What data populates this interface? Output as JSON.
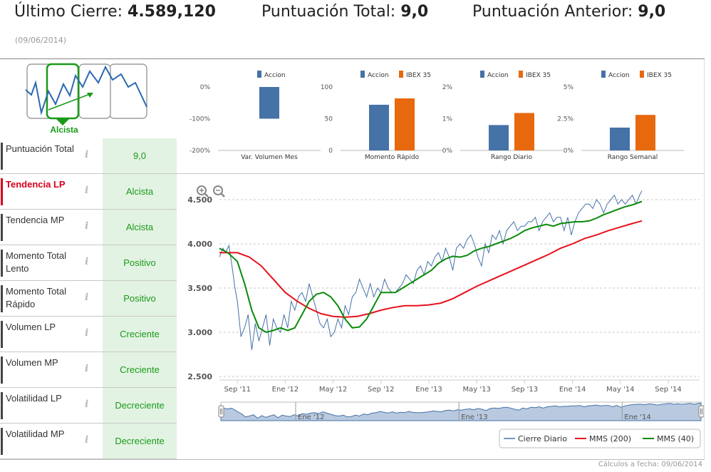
{
  "header": {
    "ultimo_cierre_label": "Último Cierre:",
    "ultimo_cierre_value": "4.589,120",
    "puntuacion_total_label": "Puntuación Total:",
    "puntuacion_total_value": "9,0",
    "puntuacion_anterior_label": "Puntuación Anterior:",
    "puntuacion_anterior_value": "9,0",
    "date": "(09/06/2014)"
  },
  "signal": {
    "label": "Alcista"
  },
  "rows": [
    {
      "label": "Puntuación Total",
      "value": "9,0",
      "active": false
    },
    {
      "label": "Tendencia LP",
      "value": "Alcista",
      "active": true
    },
    {
      "label": "Tendencia MP",
      "value": "Alcista",
      "active": false
    },
    {
      "label": "Momento Total Lento",
      "value": "Positivo",
      "active": false
    },
    {
      "label": "Momento Total Rápido",
      "value": "Positivo",
      "active": false
    },
    {
      "label": "Volumen LP",
      "value": "Creciente",
      "active": false
    },
    {
      "label": "Volumen MP",
      "value": "Creciente",
      "active": false
    },
    {
      "label": "Volatilidad LP",
      "value": "Decreciente",
      "active": false
    },
    {
      "label": "Volatilidad MP",
      "value": "Decreciente",
      "active": false
    }
  ],
  "info_glyph": "i",
  "colors": {
    "accion": "#4572a7",
    "ibex": "#e8680e",
    "price": "#4572a7",
    "mms200": "#e8111c",
    "mms40": "#0a8a0a",
    "good_bg": "#e3f3e3",
    "good_text": "#1a9a1a",
    "active_text": "#d6001c"
  },
  "chart_data": [
    {
      "type": "bar",
      "title": "Var. Volumen Mes",
      "series": [
        {
          "name": "Accion",
          "values": [
            -100
          ]
        }
      ],
      "yticks": [
        "0%",
        "-100%",
        "-200%"
      ],
      "ylim": [
        -200,
        0
      ]
    },
    {
      "type": "bar",
      "title": "Momento Rápido",
      "series": [
        {
          "name": "Accion",
          "values": [
            72
          ]
        },
        {
          "name": "IBEX 35",
          "values": [
            82
          ]
        }
      ],
      "yticks": [
        "100",
        "50",
        "0"
      ],
      "ylim": [
        0,
        100
      ]
    },
    {
      "type": "bar",
      "title": "Rango Diario",
      "series": [
        {
          "name": "Accion",
          "values": [
            0.8
          ]
        },
        {
          "name": "IBEX 35",
          "values": [
            1.18
          ]
        }
      ],
      "yticks": [
        "2%",
        "1%",
        "0%"
      ],
      "ylim": [
        0,
        2
      ]
    },
    {
      "type": "bar",
      "title": "Rango Semanal",
      "series": [
        {
          "name": "Accion",
          "values": [
            1.8
          ]
        },
        {
          "name": "IBEX 35",
          "values": [
            2.8
          ]
        }
      ],
      "yticks": [
        "5%",
        "2.5%",
        "0%"
      ],
      "ylim": [
        0,
        5
      ]
    },
    {
      "type": "line",
      "ylim": [
        2500,
        4600
      ],
      "yticks": [
        "4.500",
        "4.000",
        "3.500",
        "3.000",
        "2.500"
      ],
      "ytick_values": [
        4500,
        4000,
        3500,
        3000,
        2500
      ],
      "xticks": [
        "Sep '11",
        "Ene '12",
        "May '12",
        "Sep '12",
        "Ene '13",
        "May '13",
        "Sep '13",
        "Ene '14",
        "May '14",
        "Sep '14"
      ],
      "xtick_months": [
        0,
        4,
        8,
        12,
        16,
        20,
        24,
        28,
        32,
        36
      ],
      "x_unit": "months from Sep '11",
      "grid": "horizontal dashed",
      "legend_position": "bottom-right",
      "navigator_labels": [
        "Ene '12",
        "Ene '13",
        "Ene '14"
      ],
      "zoom_in_icon": "zoom-in-icon",
      "zoom_out_icon": "zoom-out-icon",
      "series": [
        {
          "name": "Cierre Diario",
          "x": [
            -1.5,
            -1.2,
            -1.0,
            -0.7,
            -0.4,
            -0.2,
            0.0,
            0.3,
            0.6,
            0.9,
            1.2,
            1.5,
            1.8,
            2.1,
            2.4,
            2.7,
            3.0,
            3.3,
            3.6,
            3.9,
            4.2,
            4.5,
            4.8,
            5.1,
            5.4,
            5.7,
            6.0,
            6.3,
            6.6,
            6.9,
            7.2,
            7.5,
            7.8,
            8.1,
            8.4,
            8.7,
            9.0,
            9.3,
            9.6,
            9.9,
            10.2,
            10.5,
            10.8,
            11.1,
            11.4,
            11.7,
            12.0,
            12.3,
            12.6,
            12.9,
            13.2,
            13.5,
            13.8,
            14.1,
            14.4,
            14.7,
            15.0,
            15.3,
            15.6,
            15.9,
            16.2,
            16.5,
            16.8,
            17.1,
            17.4,
            17.7,
            18.0,
            18.3,
            18.6,
            18.9,
            19.2,
            19.5,
            19.8,
            20.1,
            20.4,
            20.7,
            21.0,
            21.3,
            21.6,
            21.9,
            22.2,
            22.5,
            22.8,
            23.1,
            23.4,
            23.7,
            24.0,
            24.3,
            24.6,
            24.9,
            25.2,
            25.5,
            25.8,
            26.1,
            26.4,
            26.7,
            27.0,
            27.3,
            27.6,
            27.9,
            28.2,
            28.5,
            28.8,
            29.1,
            29.4,
            29.7,
            30.0,
            30.3,
            30.6,
            30.9,
            31.2,
            31.5,
            31.8,
            32.1,
            32.4,
            32.7,
            33.0,
            33.3,
            33.6,
            33.8
          ],
          "values": [
            3850,
            3950,
            3900,
            3980,
            3700,
            3500,
            3350,
            2950,
            3050,
            3200,
            2800,
            3100,
            2900,
            3050,
            3200,
            2850,
            3150,
            3050,
            3000,
            3200,
            3050,
            3350,
            3250,
            3400,
            3450,
            3350,
            3550,
            3400,
            3250,
            3100,
            3050,
            3150,
            2950,
            3000,
            3150,
            3050,
            3300,
            3200,
            3400,
            3450,
            3600,
            3500,
            3400,
            3550,
            3400,
            3500,
            3450,
            3600,
            3500,
            3450,
            3450,
            3500,
            3550,
            3650,
            3600,
            3550,
            3700,
            3750,
            3650,
            3800,
            3750,
            3850,
            3900,
            3800,
            3950,
            3850,
            3700,
            3950,
            4000,
            3950,
            4050,
            4100,
            4000,
            3850,
            3750,
            4000,
            3900,
            4100,
            4050,
            4150,
            4000,
            4150,
            4200,
            4250,
            4150,
            4200,
            4200,
            4250,
            4250,
            4300,
            4150,
            4250,
            4300,
            4350,
            4250,
            4300,
            4300,
            4150,
            4300,
            4100,
            4250,
            4350,
            4400,
            4450,
            4450,
            4400,
            4500,
            4450,
            4350,
            4450,
            4500,
            4550,
            4450,
            4500,
            4450,
            4500,
            4550,
            4450,
            4550,
            4600
          ]
        },
        {
          "name": "MMS (200)",
          "x": [
            -1.5,
            0.0,
            1.0,
            2.0,
            3.0,
            4.0,
            5.0,
            6.0,
            7.0,
            8.0,
            9.0,
            10.0,
            11.0,
            12.0,
            13.0,
            14.0,
            15.0,
            16.0,
            17.0,
            18.0,
            19.0,
            20.0,
            21.0,
            22.0,
            23.0,
            24.0,
            25.0,
            26.0,
            27.0,
            28.0,
            29.0,
            30.0,
            31.0,
            32.0,
            33.0,
            33.8
          ],
          "values": [
            3900,
            3900,
            3850,
            3750,
            3600,
            3450,
            3350,
            3270,
            3210,
            3180,
            3170,
            3180,
            3210,
            3250,
            3280,
            3300,
            3300,
            3310,
            3330,
            3380,
            3450,
            3520,
            3580,
            3640,
            3700,
            3760,
            3820,
            3880,
            3950,
            4000,
            4060,
            4100,
            4150,
            4190,
            4230,
            4260
          ]
        },
        {
          "name": "MMS (40)",
          "x": [
            -1.5,
            -0.8,
            0.0,
            0.6,
            1.2,
            1.8,
            2.4,
            3.0,
            3.6,
            4.2,
            4.8,
            5.4,
            6.0,
            6.6,
            7.2,
            7.8,
            8.4,
            9.0,
            9.6,
            10.2,
            10.8,
            11.4,
            12.0,
            12.6,
            13.2,
            13.8,
            14.4,
            15.0,
            15.6,
            16.2,
            16.8,
            17.4,
            18.0,
            18.6,
            19.2,
            19.8,
            20.4,
            21.0,
            21.6,
            22.2,
            22.8,
            23.4,
            24.0,
            24.6,
            25.2,
            25.8,
            26.4,
            27.0,
            27.6,
            28.2,
            28.8,
            29.4,
            30.0,
            30.6,
            31.2,
            31.8,
            32.4,
            33.0,
            33.8
          ],
          "values": [
            3950,
            3900,
            3800,
            3550,
            3250,
            3050,
            3000,
            3020,
            3050,
            3020,
            3050,
            3200,
            3350,
            3430,
            3450,
            3400,
            3300,
            3150,
            3050,
            3060,
            3150,
            3300,
            3450,
            3450,
            3450,
            3500,
            3550,
            3600,
            3650,
            3700,
            3780,
            3830,
            3860,
            3850,
            3870,
            3920,
            3950,
            3970,
            4000,
            4030,
            4060,
            4100,
            4150,
            4180,
            4200,
            4220,
            4200,
            4230,
            4240,
            4250,
            4250,
            4260,
            4290,
            4330,
            4360,
            4390,
            4420,
            4440,
            4480
          ]
        }
      ]
    }
  ]
}
